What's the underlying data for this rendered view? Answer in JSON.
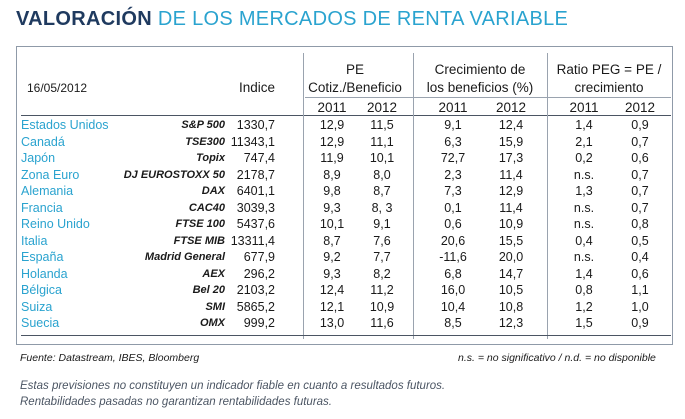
{
  "title": {
    "part1": "VALORACIÓN",
    "part2": "DE LOS MERCADOS DE RENTA VARIABLE"
  },
  "table": {
    "date": "16/05/2012",
    "indice_header": "Indice",
    "pe_header_line1": "PE",
    "pe_header_line2": "Cotiz./Beneficio",
    "growth_header_line1": "Crecimiento de",
    "growth_header_line2": "los beneficios (%)",
    "peg_header_line1": "Ratio PEG = PE /",
    "peg_header_line2": "crecimiento",
    "years": [
      "2011",
      "2012"
    ],
    "rows": [
      {
        "country": "Estados Unidos",
        "index": "S&P 500",
        "value": "1330,7",
        "pe2011": "12,9",
        "pe2012": "11,5",
        "g2011": "9,1",
        "g2012": "12,4",
        "peg2011": "1,4",
        "peg2012": "0,9"
      },
      {
        "country": "Canadá",
        "index": "TSE300",
        "value": "11343,1",
        "pe2011": "12,9",
        "pe2012": "11,1",
        "g2011": "6,3",
        "g2012": "15,9",
        "peg2011": "2,1",
        "peg2012": "0,7"
      },
      {
        "country": "Japón",
        "index": "Topix",
        "value": "747,4",
        "pe2011": "11,9",
        "pe2012": "10,1",
        "g2011": "72,7",
        "g2012": "17,3",
        "peg2011": "0,2",
        "peg2012": "0,6"
      },
      {
        "country": "Zona Euro",
        "index": "DJ EUROSTOXX 50",
        "value": "2178,7",
        "pe2011": "8,9",
        "pe2012": "8,0",
        "g2011": "2,3",
        "g2012": "11,4",
        "peg2011": "n.s.",
        "peg2012": "0,7"
      },
      {
        "country": "Alemania",
        "index": "DAX",
        "value": "6401,1",
        "pe2011": "9,8",
        "pe2012": "8,7",
        "g2011": "7,3",
        "g2012": "12,9",
        "peg2011": "1,3",
        "peg2012": "0,7"
      },
      {
        "country": "Francia",
        "index": "CAC40",
        "value": "3039,3",
        "pe2011": "9,3",
        "pe2012": "8, 3",
        "g2011": "0,1",
        "g2012": "11,4",
        "peg2011": "n.s.",
        "peg2012": "0,7"
      },
      {
        "country": "Reino Unido",
        "index": "FTSE 100",
        "value": "5437,6",
        "pe2011": "10,1",
        "pe2012": "9,1",
        "g2011": "0,6",
        "g2012": "10,9",
        "peg2011": "n.s.",
        "peg2012": "0,8"
      },
      {
        "country": "Italia",
        "index": "FTSE MIB",
        "value": "13311,4",
        "pe2011": "8,7",
        "pe2012": "7,6",
        "g2011": "20,6",
        "g2012": "15,5",
        "peg2011": "0,4",
        "peg2012": "0,5"
      },
      {
        "country": "España",
        "index": "Madrid General",
        "value": "677,9",
        "pe2011": "9,2",
        "pe2012": "7,7",
        "g2011": "-11,6",
        "g2012": "20,0",
        "peg2011": "n.s.",
        "peg2012": "0,4"
      },
      {
        "country": "Holanda",
        "index": "AEX",
        "value": "296,2",
        "pe2011": "9,3",
        "pe2012": "8,2",
        "g2011": "6,8",
        "g2012": "14,7",
        "peg2011": "1,4",
        "peg2012": "0,6"
      },
      {
        "country": "Bélgica",
        "index": "Bel 20",
        "value": "2103,2",
        "pe2011": "12,4",
        "pe2012": "11,2",
        "g2011": "16,0",
        "g2012": "10,5",
        "peg2011": "0,8",
        "peg2012": "1,1"
      },
      {
        "country": "Suiza",
        "index": "SMI",
        "value": "5865,2",
        "pe2011": "12,1",
        "pe2012": "10,9",
        "g2011": "10,4",
        "g2012": "10,8",
        "peg2011": "1,2",
        "peg2012": "1,0"
      },
      {
        "country": "Suecia",
        "index": "OMX",
        "value": "999,2",
        "pe2011": "13,0",
        "pe2012": "11,6",
        "g2011": "8,5",
        "g2012": "12,3",
        "peg2011": "1,5",
        "peg2012": "0,9"
      }
    ]
  },
  "source_note": "Fuente: Datastream, IBES, Bloomberg",
  "abbrev_note": "n.s. = no significativo / n.d. = no disponible",
  "disclaimer_line1": "Estas previsiones no constituyen un indicador fiable en cuanto a resultados futuros.",
  "disclaimer_line2": "Rentabilidades pasadas no garantizan rentabilidades futuras."
}
